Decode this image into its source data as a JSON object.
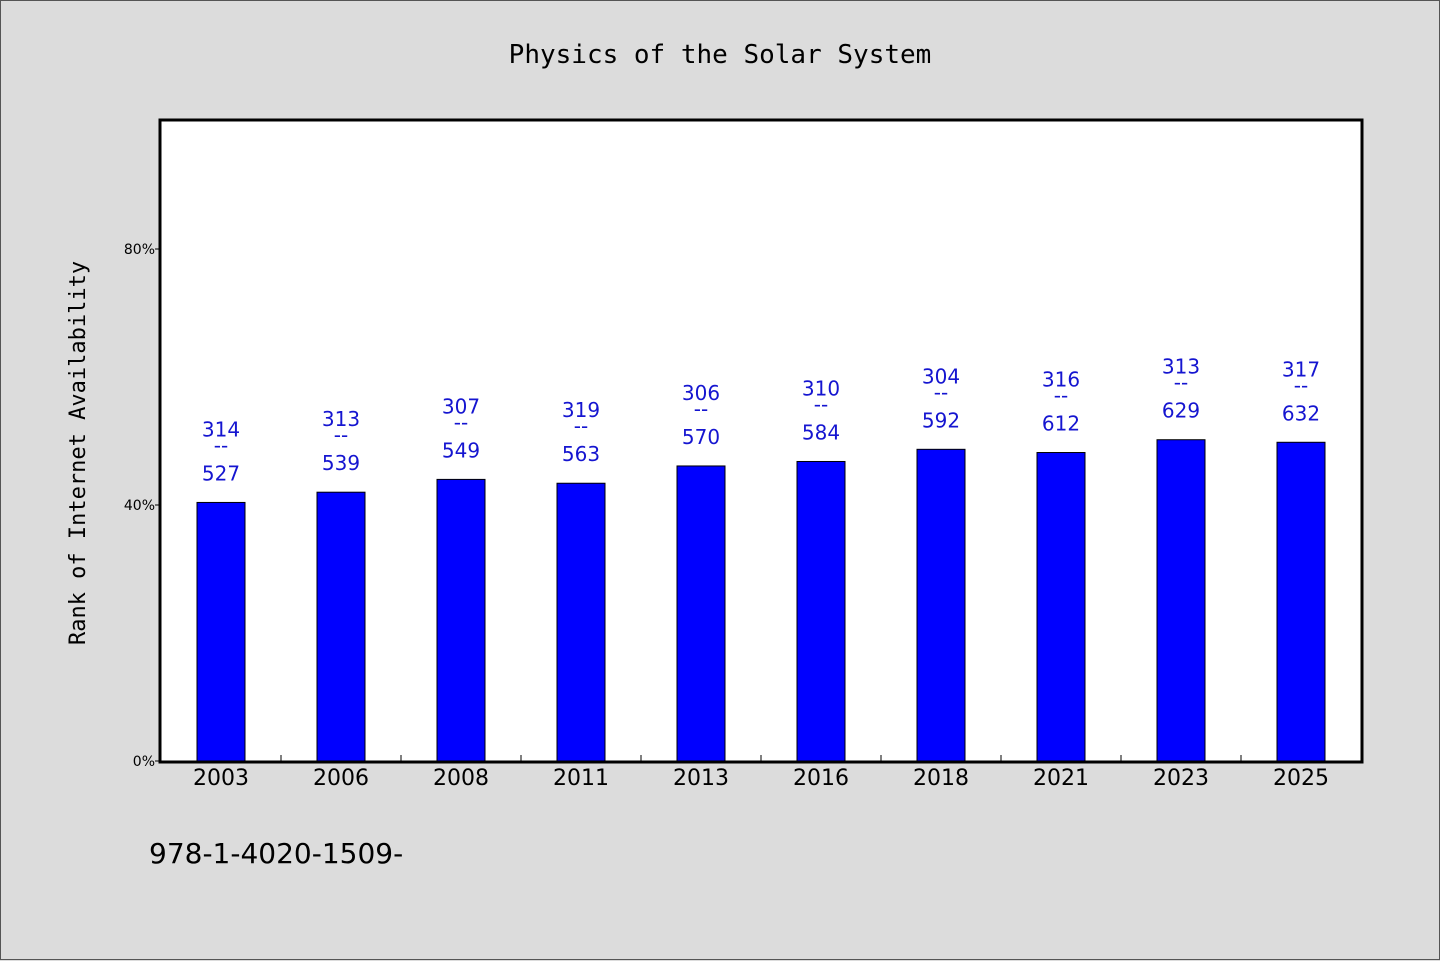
{
  "chart_data": {
    "type": "bar",
    "title": "Physics of the Solar System",
    "ylabel": "Rank of Internet Availability",
    "xlabel": "",
    "ylim": [
      0,
      100
    ],
    "yticks": [
      {
        "value": 0,
        "label": "0%"
      },
      {
        "value": 40,
        "label": "40%"
      },
      {
        "value": 80,
        "label": "80%"
      }
    ],
    "categories": [
      "2003",
      "2006",
      "2008",
      "2011",
      "2013",
      "2016",
      "2018",
      "2021",
      "2023",
      "2025"
    ],
    "values": [
      40.4,
      42.0,
      44.0,
      43.4,
      46.1,
      46.8,
      48.7,
      48.2,
      50.2,
      49.8
    ],
    "data_labels": [
      {
        "top": "314",
        "mid": "--",
        "bottom": "527"
      },
      {
        "top": "313",
        "mid": "--",
        "bottom": "539"
      },
      {
        "top": "307",
        "mid": "--",
        "bottom": "549"
      },
      {
        "top": "319",
        "mid": "--",
        "bottom": "563"
      },
      {
        "top": "306",
        "mid": "--",
        "bottom": "570"
      },
      {
        "top": "310",
        "mid": "--",
        "bottom": "584"
      },
      {
        "top": "304",
        "mid": "--",
        "bottom": "592"
      },
      {
        "top": "316",
        "mid": "--",
        "bottom": "612"
      },
      {
        "top": "313",
        "mid": "--",
        "bottom": "629"
      },
      {
        "top": "317",
        "mid": "--",
        "bottom": "632"
      }
    ],
    "grid": false,
    "bar_color": "#0000ff",
    "label_color": "#1515d0",
    "background": "#dcdcdc",
    "plot_background": "#ffffff"
  },
  "footer_text": "978-1-4020-1509-"
}
